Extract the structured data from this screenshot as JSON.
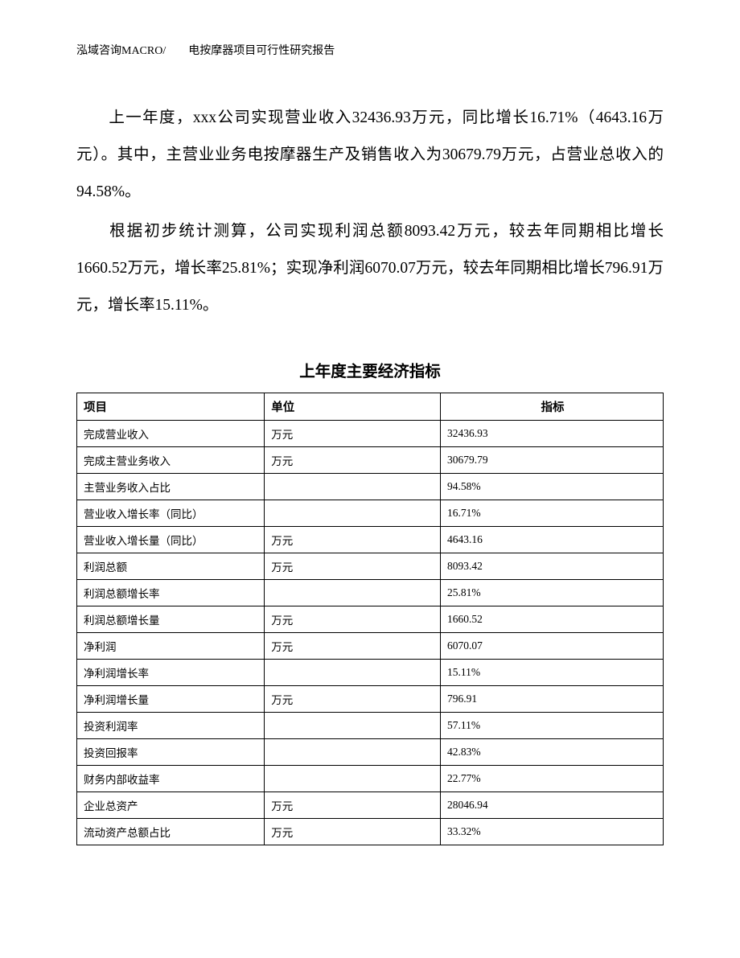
{
  "header": "泓域咨询MACRO/　　电按摩器项目可行性研究报告",
  "paragraphs": {
    "p1": "上一年度，xxx公司实现营业收入32436.93万元，同比增长16.71%（4643.16万元）。其中，主营业业务电按摩器生产及销售收入为30679.79万元，占营业总收入的94.58%。",
    "p2": "根据初步统计测算，公司实现利润总额8093.42万元，较去年同期相比增长1660.52万元，增长率25.81%；实现净利润6070.07万元，较去年同期相比增长796.91万元，增长率15.11%。"
  },
  "table": {
    "title": "上年度主要经济指标",
    "columns": {
      "item": "项目",
      "unit": "单位",
      "value": "指标"
    },
    "col_widths": [
      "32%",
      "30%",
      "38%"
    ],
    "border_color": "#000000",
    "header_fontsize": 14.5,
    "cell_fontsize": 13.5,
    "rows": [
      {
        "item": "完成营业收入",
        "unit": "万元",
        "value": "32436.93"
      },
      {
        "item": "完成主营业务收入",
        "unit": "万元",
        "value": "30679.79"
      },
      {
        "item": "主营业务收入占比",
        "unit": "",
        "value": "94.58%"
      },
      {
        "item": "营业收入增长率（同比）",
        "unit": "",
        "value": "16.71%"
      },
      {
        "item": "营业收入增长量（同比）",
        "unit": "万元",
        "value": "4643.16"
      },
      {
        "item": "利润总额",
        "unit": "万元",
        "value": "8093.42"
      },
      {
        "item": "利润总额增长率",
        "unit": "",
        "value": "25.81%"
      },
      {
        "item": "利润总额增长量",
        "unit": "万元",
        "value": "1660.52"
      },
      {
        "item": "净利润",
        "unit": "万元",
        "value": "6070.07"
      },
      {
        "item": "净利润增长率",
        "unit": "",
        "value": "15.11%"
      },
      {
        "item": "净利润增长量",
        "unit": "万元",
        "value": "796.91"
      },
      {
        "item": "投资利润率",
        "unit": "",
        "value": "57.11%"
      },
      {
        "item": "投资回报率",
        "unit": "",
        "value": "42.83%"
      },
      {
        "item": "财务内部收益率",
        "unit": "",
        "value": "22.77%"
      },
      {
        "item": "企业总资产",
        "unit": "万元",
        "value": "28046.94"
      },
      {
        "item": "流动资产总额占比",
        "unit": "万元",
        "value": "33.32%"
      }
    ]
  },
  "style": {
    "page_bg": "#ffffff",
    "text_color": "#000000",
    "body_fontsize": 19.5,
    "body_line_height": 2.35
  }
}
